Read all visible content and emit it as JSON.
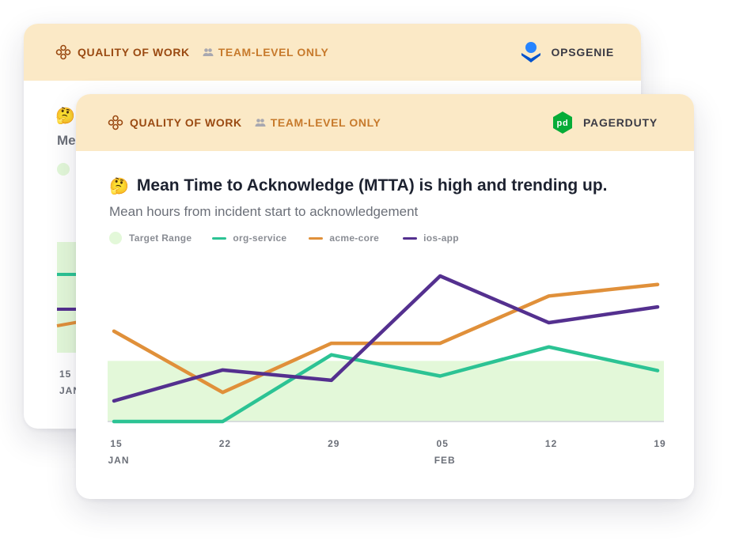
{
  "back_card": {
    "header": {
      "category_label": "QUALITY OF WORK",
      "scope_label": "TEAM-LEVEL ONLY",
      "vendor_name": "OPSGENIE"
    },
    "emoji": "🤔",
    "title_fragment": "Me",
    "tick_day": "15",
    "tick_month": "JAN"
  },
  "front_card": {
    "header": {
      "category_label": "QUALITY OF WORK",
      "scope_label": "TEAM-LEVEL ONLY",
      "vendor_name": "PAGERDUTY",
      "vendor_logo_text": "pd"
    },
    "emoji": "🤔",
    "title": "Mean Time to Acknowledge (MTTA) is high and trending up.",
    "subtitle": "Mean hours from incident start to acknowledgement",
    "legend": {
      "range_label": "Target Range",
      "series_labels": [
        "org-service",
        "acme-core",
        "ios-app"
      ]
    }
  },
  "colors": {
    "header_bg": "#fbe9c6",
    "target_range": "#e3f8d9",
    "org_service": "#2cc394",
    "acme_core": "#e0903a",
    "ios_app": "#54308f",
    "pagerduty_green": "#06ac38",
    "opsgenie_blue": "#2684ff"
  },
  "chart_data": {
    "type": "line",
    "x": [
      "15",
      "22",
      "29",
      "05",
      "12",
      "19"
    ],
    "x_month_labels": [
      "JAN",
      "",
      "",
      "FEB",
      "",
      ""
    ],
    "target_range": [
      0,
      10
    ],
    "ylim": [
      0,
      24
    ],
    "grid": false,
    "legend_position": "top-left",
    "series": [
      {
        "name": "org-service",
        "color": "#2cc394",
        "values": [
          0,
          0,
          11,
          7.5,
          12.3,
          8.4
        ]
      },
      {
        "name": "acme-core",
        "color": "#e0903a",
        "values": [
          14.9,
          4.8,
          12.9,
          12.9,
          20.7,
          22.6
        ]
      },
      {
        "name": "ios-app",
        "color": "#54308f",
        "values": [
          3.4,
          8.5,
          6.8,
          24,
          16.3,
          18.9
        ]
      }
    ]
  }
}
